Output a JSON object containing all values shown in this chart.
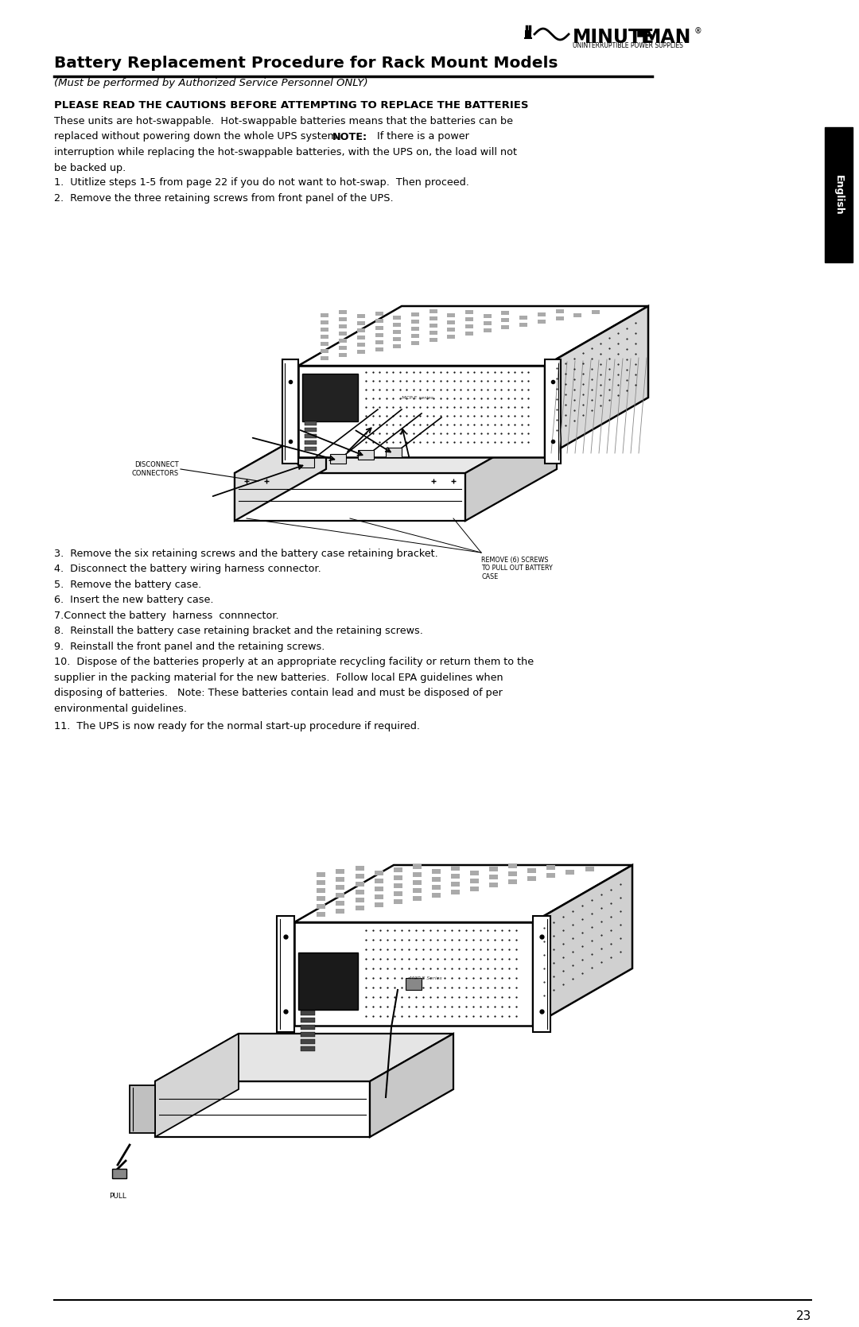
{
  "page_bg": "#ffffff",
  "title": "Battery Replacement Procedure for Rack Mount Models",
  "subtitle": "(Must be performed by Authorized Service Personnel ONLY)",
  "caution_bold": "PLEASE READ THE CAUTIONS BEFORE ATTEMPTING TO REPLACE THE BATTERIES",
  "body_line1": "These units are hot-swappable.  Hot-swappable batteries means that the batteries can be",
  "body_line2": "replaced without powering down the whole UPS system.   ",
  "body_note": "NOTE:",
  "body_line2b": "  If there is a power",
  "body_line3": "interruption while replacing the hot-swappable batteries, with the UPS on, the load will not",
  "body_line4": "be backed up.",
  "step1": "1.  Utitlize steps 1-5 from page 22 if you do not want to hot-swap.  Then proceed.",
  "step2": "2.  Remove the three retaining screws from front panel of the UPS.",
  "step3": "3.  Remove the six retaining screws and the battery case retaining bracket.",
  "step4": "4.  Disconnect the battery wiring harness connector.",
  "step5": "5.  Remove the battery case.",
  "step6": "6.  Insert the new battery case.",
  "step7": "7.Connect the battery  harness  connnector.",
  "step8": "8.  Reinstall the battery case retaining bracket and the retaining screws.",
  "step9": "9.  Reinstall the front panel and the retaining screws.",
  "step10a": "10.  Dispose of the batteries properly at an appropriate recycling facility or return them to the",
  "step10b": "supplier in the packing material for the new batteries.  Follow local EPA guidelines when",
  "step10c": "disposing of batteries.   Note: These batteries contain lead and must be disposed of per",
  "step10d": "environmental guidelines.",
  "step11": "11.  The UPS is now ready for the normal start-up procedure if required.",
  "label_disconnect": "DISCONNECT\nCONNECTORS",
  "label_remove_screws": "REMOVE (6) SCREWS\nTO PULL OUT BATTERY\nCASE",
  "label_pull": "PULL",
  "page_number": "23",
  "english_tab_bg": "#000000",
  "english_tab_text": "English"
}
